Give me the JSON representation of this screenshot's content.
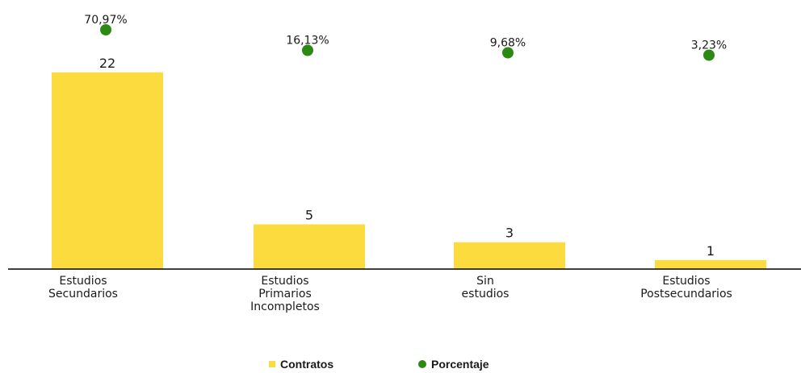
{
  "chart_data": {
    "type": "bar",
    "categories": [
      [
        "Estudios",
        "Secundarios"
      ],
      [
        "Estudios",
        "Primarios",
        "Incompletos"
      ],
      [
        "Sin",
        "estudios"
      ],
      [
        "Estudios",
        "Postsecundarios"
      ]
    ],
    "series": [
      {
        "name": "Contratos",
        "type": "bar",
        "values": [
          22,
          5,
          3,
          1
        ],
        "labels": [
          "22",
          "5",
          "3",
          "1"
        ]
      },
      {
        "name": "Porcentaje",
        "type": "scatter",
        "values": [
          70.97,
          16.13,
          9.68,
          3.23
        ],
        "labels": [
          "70,97%",
          "16,13%",
          "9,68%",
          "3,23%"
        ]
      }
    ],
    "colors": {
      "bar": "#fcdb3e",
      "point": "#2c8a14",
      "axis": "#000000"
    },
    "grid": false,
    "legend_position": "bottom"
  }
}
